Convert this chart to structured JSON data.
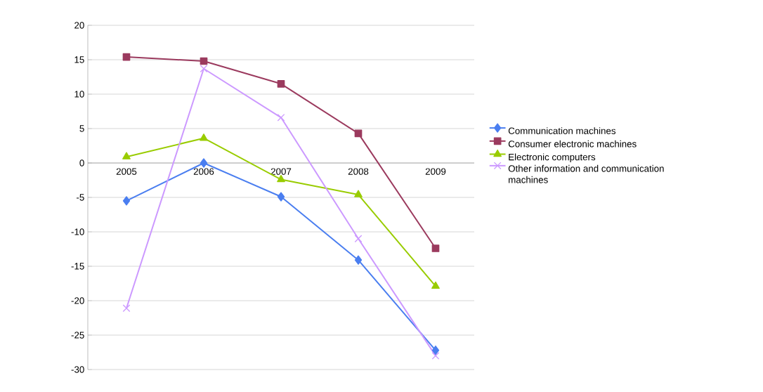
{
  "chart_data": {
    "type": "line",
    "categories": [
      "2005",
      "2006",
      "2007",
      "2008",
      "2009"
    ],
    "series": [
      {
        "name": "Communication machines",
        "color": "#4a7ef0",
        "marker": "diamond",
        "values": [
          -5.5,
          0,
          -4.9,
          -14.1,
          -27.2
        ]
      },
      {
        "name": "Consumer electronic machines",
        "color": "#9b3a5e",
        "marker": "square",
        "values": [
          15.4,
          14.8,
          11.5,
          4.3,
          -12.4
        ]
      },
      {
        "name": "Electronic computers",
        "color": "#99cc00",
        "marker": "triangle",
        "values": [
          0.9,
          3.6,
          -2.4,
          -4.6,
          -17.9
        ]
      },
      {
        "name": "Other information and communication machines",
        "color": "#cc99ff",
        "marker": "cross",
        "values": [
          -21.1,
          13.7,
          6.6,
          -11.0,
          -28.0
        ]
      }
    ],
    "ylim": [
      -30,
      20
    ],
    "yticks": [
      -30,
      -25,
      -20,
      -15,
      -10,
      -5,
      0,
      5,
      10,
      15,
      20
    ],
    "grid": "y",
    "legend": "right"
  }
}
